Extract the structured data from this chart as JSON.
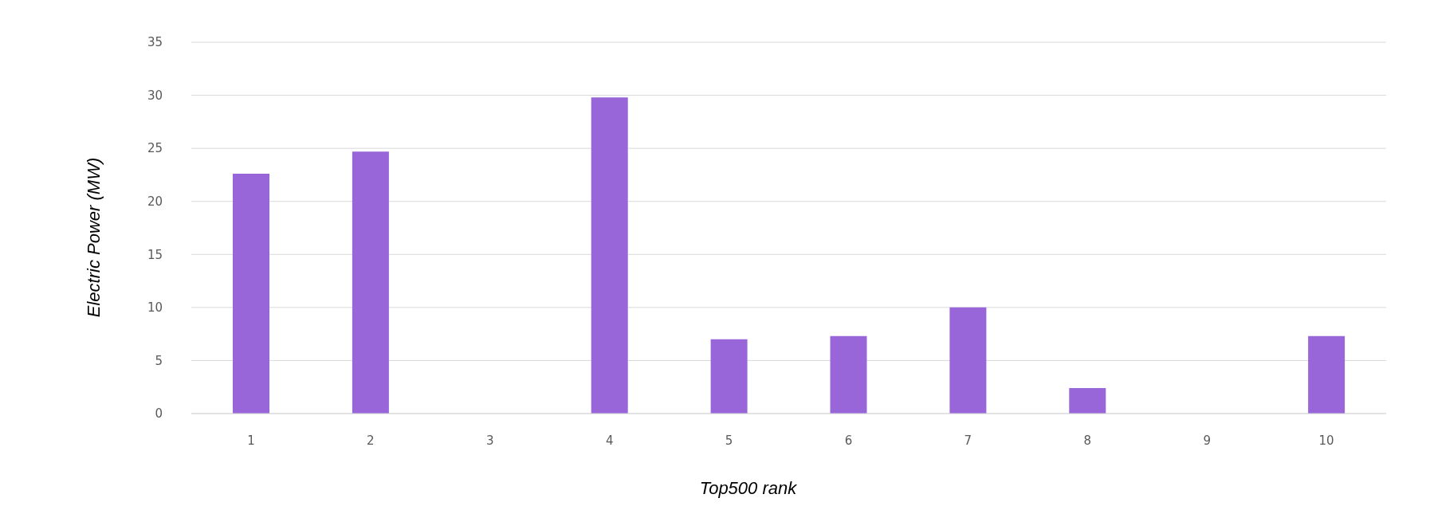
{
  "chart_data": {
    "type": "bar",
    "xlabel": "Top500 rank",
    "ylabel": "Electric Power (MW)",
    "categories": [
      "1",
      "2",
      "3",
      "4",
      "5",
      "6",
      "7",
      "8",
      "9",
      "10"
    ],
    "values": [
      22.6,
      24.7,
      null,
      29.8,
      7.0,
      7.3,
      10.0,
      2.4,
      null,
      7.3
    ],
    "color": "#9966d9",
    "ylim": [
      0,
      35
    ],
    "yticks": [
      0,
      5,
      10,
      15,
      20,
      25,
      30,
      35
    ],
    "grid": "y",
    "legend": false
  }
}
